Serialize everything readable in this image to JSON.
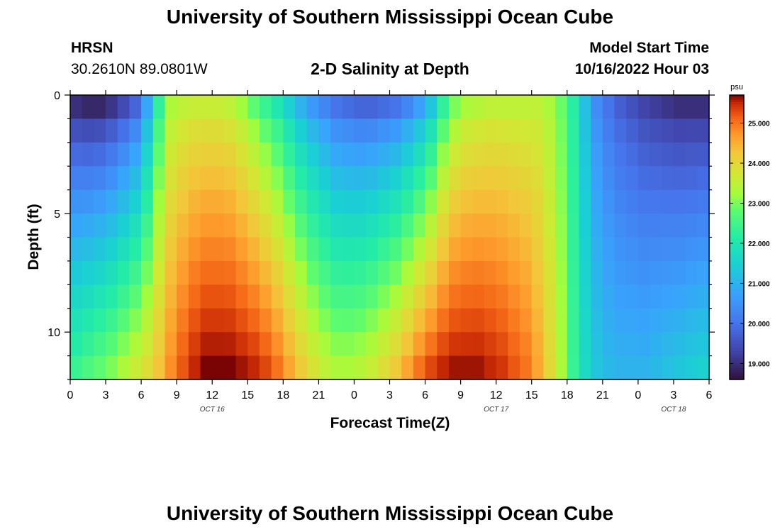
{
  "page": {
    "title_top": "University of Southern Mississippi Ocean Cube",
    "title_bottom": "University of Southern Mississippi Ocean Cube",
    "station": "HRSN",
    "coords": "30.2610N  89.0801W",
    "subtitle": "2-D Salinity at Depth",
    "model_label": "Model Start Time",
    "model_time": "10/16/2022 Hour 03"
  },
  "chart_data": {
    "type": "heatmap",
    "title": "2-D Salinity at Depth",
    "xlabel": "Forecast Time(Z)",
    "ylabel": "Depth (ft)",
    "x_tick_labels": [
      "0",
      "3",
      "6",
      "9",
      "12",
      "15",
      "18",
      "21",
      "0",
      "3",
      "6",
      "9",
      "12",
      "15",
      "18",
      "21",
      "0",
      "3",
      "6"
    ],
    "x_range_hours": [
      0,
      54
    ],
    "date_labels": [
      {
        "label": "OCT 16",
        "hour": 12
      },
      {
        "label": "OCT 17",
        "hour": 36
      },
      {
        "label": "OCT 18",
        "hour": 51
      }
    ],
    "y_tick_labels": [
      "0",
      "5",
      "10"
    ],
    "y_tick_values": [
      0,
      5,
      10
    ],
    "y_range_ft": [
      0,
      12
    ],
    "colorbar": {
      "unit": "psu",
      "range": [
        18.6,
        25.7
      ],
      "tick_labels": [
        "25.000",
        "24.000",
        "23.000",
        "22.000",
        "21.000",
        "20.000",
        "19.000"
      ],
      "tick_values": [
        25,
        24,
        23,
        22,
        21,
        20,
        19
      ]
    },
    "depth_levels_ft": [
      0.5,
      1.5,
      2.5,
      3.5,
      4.5,
      5.5,
      6.5,
      7.5,
      8.5,
      9.5,
      10.5,
      11.5
    ],
    "time_hours": [
      0,
      1,
      2,
      3,
      4,
      5,
      6,
      7,
      8,
      9,
      10,
      11,
      12,
      13,
      14,
      15,
      16,
      17,
      18,
      19,
      20,
      21,
      22,
      23,
      24,
      25,
      26,
      27,
      28,
      29,
      30,
      31,
      32,
      33,
      34,
      35,
      36,
      37,
      38,
      39,
      40,
      41,
      42,
      43,
      44,
      45,
      46,
      47,
      48,
      49,
      50,
      51,
      52,
      53,
      54
    ],
    "salinity_psu": {
      "surface": [
        19.0,
        18.9,
        18.9,
        19.1,
        19.4,
        19.8,
        20.8,
        22.3,
        23.3,
        23.5,
        23.6,
        23.6,
        23.6,
        23.5,
        23.2,
        22.8,
        22.4,
        22.0,
        21.5,
        21.0,
        20.6,
        20.3,
        20.0,
        19.9,
        19.8,
        19.8,
        19.9,
        20.0,
        20.3,
        20.7,
        21.3,
        22.3,
        23.0,
        23.3,
        23.4,
        23.5,
        23.5,
        23.5,
        23.5,
        23.5,
        23.3,
        22.9,
        22.2,
        21.2,
        20.4,
        20.0,
        19.7,
        19.5,
        19.3,
        19.2,
        19.1,
        19.0,
        19.0,
        19.0,
        19.0
      ],
      "bottom": [
        22.4,
        22.6,
        22.8,
        23.0,
        23.3,
        23.6,
        23.9,
        24.3,
        24.8,
        25.2,
        25.5,
        25.7,
        25.7,
        25.7,
        25.6,
        25.5,
        25.3,
        25.0,
        24.6,
        24.2,
        23.8,
        23.5,
        23.3,
        23.3,
        23.4,
        23.6,
        23.9,
        24.2,
        24.6,
        25.0,
        25.3,
        25.5,
        25.6,
        25.6,
        25.6,
        25.5,
        25.4,
        25.2,
        25.0,
        24.6,
        24.0,
        23.3,
        22.4,
        21.7,
        21.3,
        21.1,
        21.0,
        21.0,
        21.0,
        21.1,
        21.2,
        21.3,
        21.4,
        21.5,
        21.5
      ]
    }
  }
}
